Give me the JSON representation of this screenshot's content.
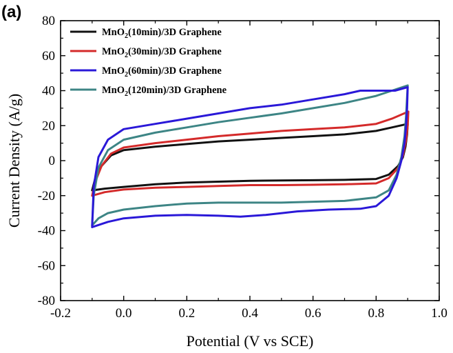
{
  "panel_label": "(a)",
  "colors": {
    "MnO2_10min": "#111111",
    "MnO2_30min": "#d42a2a",
    "MnO2_60min": "#2a18d8",
    "MnO2_120min": "#3d8585"
  },
  "chart_data": {
    "type": "line",
    "title": "",
    "xlabel": "Potential (V vs SCE)",
    "ylabel": "Current Density (A/g)",
    "xlim": [
      -0.2,
      1.0
    ],
    "ylim": [
      -80,
      80
    ],
    "xticks": [
      "-0.2",
      "0.0",
      "0.2",
      "0.4",
      "0.6",
      "0.8",
      "1.0"
    ],
    "yticks": [
      "80",
      "60",
      "40",
      "20",
      "0",
      "-20",
      "-40",
      "-60",
      "-80"
    ],
    "xtick_values": [
      -0.2,
      0.0,
      0.2,
      0.4,
      0.6,
      0.8,
      1.0
    ],
    "ytick_values": [
      80,
      60,
      40,
      20,
      0,
      -20,
      -40,
      -60,
      -80
    ],
    "grid": false,
    "legend_position": "top-left",
    "series": [
      {
        "id": "MnO2_10min",
        "name": "MnO2(10min)/3D Graphene",
        "legend_main": "MnO",
        "legend_sub": "2",
        "legend_rest": "(10min)/3D Graphene",
        "points": [
          [
            -0.1,
            -17
          ],
          [
            -0.06,
            -16
          ],
          [
            0.0,
            -15
          ],
          [
            0.1,
            -13.5
          ],
          [
            0.2,
            -12.5
          ],
          [
            0.3,
            -12
          ],
          [
            0.4,
            -11.5
          ],
          [
            0.5,
            -11.3
          ],
          [
            0.6,
            -11.2
          ],
          [
            0.7,
            -11
          ],
          [
            0.8,
            -10.5
          ],
          [
            0.84,
            -8
          ],
          [
            0.87,
            -3
          ],
          [
            0.885,
            2
          ],
          [
            0.893,
            8
          ],
          [
            0.898,
            15
          ],
          [
            0.9,
            21
          ],
          [
            0.85,
            19
          ],
          [
            0.8,
            17
          ],
          [
            0.7,
            15
          ],
          [
            0.6,
            14
          ],
          [
            0.5,
            13
          ],
          [
            0.4,
            12
          ],
          [
            0.3,
            11
          ],
          [
            0.2,
            9.5
          ],
          [
            0.1,
            8
          ],
          [
            0.0,
            6
          ],
          [
            -0.04,
            3
          ],
          [
            -0.07,
            -3
          ],
          [
            -0.09,
            -10
          ],
          [
            -0.1,
            -17
          ]
        ]
      },
      {
        "id": "MnO2_30min",
        "name": "MnO2(30min)/3D Graphene",
        "legend_main": "MnO",
        "legend_sub": "2",
        "legend_rest": "(30min)/3D Graphene",
        "points": [
          [
            -0.1,
            -20
          ],
          [
            -0.06,
            -18
          ],
          [
            0.0,
            -16.5
          ],
          [
            0.1,
            -15.5
          ],
          [
            0.2,
            -15
          ],
          [
            0.3,
            -14.5
          ],
          [
            0.4,
            -14
          ],
          [
            0.5,
            -14
          ],
          [
            0.6,
            -13.8
          ],
          [
            0.7,
            -13.5
          ],
          [
            0.8,
            -13
          ],
          [
            0.84,
            -10
          ],
          [
            0.87,
            -4
          ],
          [
            0.885,
            3
          ],
          [
            0.895,
            12
          ],
          [
            0.9,
            20
          ],
          [
            0.902,
            28
          ],
          [
            0.85,
            24
          ],
          [
            0.8,
            21
          ],
          [
            0.7,
            19
          ],
          [
            0.6,
            18
          ],
          [
            0.5,
            17
          ],
          [
            0.4,
            15.5
          ],
          [
            0.3,
            14
          ],
          [
            0.2,
            12
          ],
          [
            0.1,
            10
          ],
          [
            0.0,
            7.5
          ],
          [
            -0.04,
            4
          ],
          [
            -0.07,
            -3
          ],
          [
            -0.09,
            -12
          ],
          [
            -0.1,
            -20
          ]
        ]
      },
      {
        "id": "MnO2_60min",
        "name": "MnO2(60min)/3D Graphene",
        "legend_main": "MnO",
        "legend_sub": "2",
        "legend_rest": "(60min)/3D Graphene",
        "points": [
          [
            -0.1,
            -38
          ],
          [
            -0.05,
            -35
          ],
          [
            0.0,
            -33
          ],
          [
            0.1,
            -31.5
          ],
          [
            0.2,
            -31
          ],
          [
            0.3,
            -31.5
          ],
          [
            0.37,
            -32
          ],
          [
            0.45,
            -31
          ],
          [
            0.55,
            -29
          ],
          [
            0.65,
            -28
          ],
          [
            0.75,
            -27.5
          ],
          [
            0.8,
            -26
          ],
          [
            0.84,
            -20
          ],
          [
            0.865,
            -10
          ],
          [
            0.88,
            0
          ],
          [
            0.89,
            10
          ],
          [
            0.895,
            20
          ],
          [
            0.898,
            30
          ],
          [
            0.9,
            42
          ],
          [
            0.86,
            40
          ],
          [
            0.8,
            40
          ],
          [
            0.75,
            40
          ],
          [
            0.7,
            38
          ],
          [
            0.6,
            35
          ],
          [
            0.5,
            32
          ],
          [
            0.4,
            30
          ],
          [
            0.3,
            27
          ],
          [
            0.2,
            24
          ],
          [
            0.1,
            21
          ],
          [
            0.0,
            18
          ],
          [
            -0.05,
            12
          ],
          [
            -0.08,
            2
          ],
          [
            -0.095,
            -15
          ],
          [
            -0.1,
            -38
          ]
        ]
      },
      {
        "id": "MnO2_120min",
        "name": "MnO2(120min)/3D Graphene",
        "legend_main": "MnO",
        "legend_sub": "2",
        "legend_rest": "(120min)/3D Graphene",
        "points": [
          [
            -0.1,
            -37
          ],
          [
            -0.08,
            -33
          ],
          [
            -0.05,
            -30
          ],
          [
            0.0,
            -28
          ],
          [
            0.1,
            -26
          ],
          [
            0.2,
            -24.5
          ],
          [
            0.3,
            -24
          ],
          [
            0.4,
            -24
          ],
          [
            0.5,
            -24
          ],
          [
            0.6,
            -23.5
          ],
          [
            0.7,
            -23
          ],
          [
            0.8,
            -21
          ],
          [
            0.84,
            -17
          ],
          [
            0.865,
            -8
          ],
          [
            0.88,
            2
          ],
          [
            0.89,
            14
          ],
          [
            0.895,
            26
          ],
          [
            0.9,
            43
          ],
          [
            0.85,
            40
          ],
          [
            0.8,
            37
          ],
          [
            0.7,
            33
          ],
          [
            0.6,
            30
          ],
          [
            0.5,
            27
          ],
          [
            0.4,
            24.5
          ],
          [
            0.3,
            22
          ],
          [
            0.2,
            19
          ],
          [
            0.1,
            16
          ],
          [
            0.0,
            12
          ],
          [
            -0.05,
            6
          ],
          [
            -0.08,
            -4
          ],
          [
            -0.095,
            -20
          ],
          [
            -0.1,
            -37
          ]
        ]
      }
    ]
  }
}
